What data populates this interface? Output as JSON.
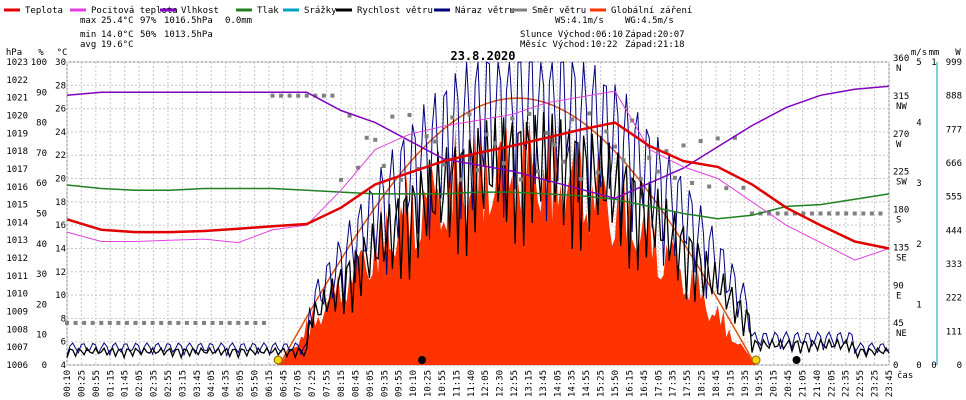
{
  "colors": {
    "temperature": "#e00000",
    "feels_like": "#e040e0",
    "humidity": "#8000c0",
    "pressure": "#208020",
    "precipitation": "#00a0c0",
    "wind_speed": "#000000",
    "wind_gust": "#000080",
    "wind_direction": "#808080",
    "radiation": "#ff3300",
    "radiation_curve": "#e05010",
    "grid": "#c8c8c8",
    "sun_marker": "#ffd400"
  },
  "legend": [
    {
      "key": "temperature",
      "label": "Teplota"
    },
    {
      "key": "feels_like",
      "label": "Pocitová teplota"
    },
    {
      "key": "humidity",
      "label": "Vlhkost"
    },
    {
      "key": "pressure",
      "label": "Tlak"
    },
    {
      "key": "precipitation",
      "label": "Srážky"
    },
    {
      "key": "wind_speed",
      "label": "Rychlost větru"
    },
    {
      "key": "wind_gust",
      "label": "Náraz větru"
    },
    {
      "key": "wind_direction",
      "label": "Směr větru"
    },
    {
      "key": "radiation",
      "label": "Globální záření"
    }
  ],
  "stats": {
    "max": {
      "label": "max",
      "temp": "25.4°C",
      "hum": "97%",
      "press": "1016.5hPa",
      "rain": "0.0mm"
    },
    "min": {
      "label": "min",
      "temp": "14.0°C",
      "hum": "50%",
      "press": "1013.5hPa"
    },
    "avg": {
      "label": "avg",
      "temp": "19.6°C"
    }
  },
  "info": {
    "ws": "WS:4.1m/s",
    "wg": "WG:4.5m/s",
    "sun": "Slunce Východ:06:10",
    "sun_set": "Západ:20:07",
    "moon": "Měsíc Východ:10:22",
    "moon_set": "Západ:21:18"
  },
  "chart_data": {
    "type": "line",
    "title": "23.8.2020",
    "xlabel": "čas",
    "axes": {
      "hpa": {
        "label": "hPa",
        "min": 1006,
        "max": 1023,
        "ticks": [
          1006,
          1007,
          1008,
          1009,
          1010,
          1011,
          1012,
          1013,
          1014,
          1015,
          1016,
          1017,
          1018,
          1019,
          1020,
          1021,
          1022,
          1023
        ]
      },
      "percent": {
        "label": "%",
        "min": 0,
        "max": 100,
        "ticks": [
          0,
          10,
          20,
          30,
          40,
          50,
          60,
          70,
          80,
          90,
          100
        ]
      },
      "celsius": {
        "label": "°C",
        "min": 4,
        "max": 30,
        "ticks": [
          4,
          6,
          8,
          10,
          12,
          14,
          16,
          18,
          20,
          22,
          24,
          26,
          28,
          30
        ]
      },
      "wind": {
        "label": "m/s",
        "min": 0,
        "max": 5,
        "ticks": [
          0,
          1,
          2,
          3,
          4,
          5
        ]
      },
      "direction": {
        "label": "°",
        "ticks": [
          {
            "v": 0,
            "t": "0"
          },
          {
            "v": 45,
            "t": "45 NE"
          },
          {
            "v": 90,
            "t": "90 E"
          },
          {
            "v": 135,
            "t": "135 SE"
          },
          {
            "v": 180,
            "t": "180 S"
          },
          {
            "v": 225,
            "t": "225 SW"
          },
          {
            "v": 270,
            "t": "270 W"
          },
          {
            "v": 315,
            "t": "315 NW"
          },
          {
            "v": 360,
            "t": "360 N"
          }
        ]
      },
      "rain": {
        "label": "mm",
        "min": 0,
        "max": 1,
        "ticks": [
          0,
          1
        ]
      },
      "radiation": {
        "label": "W",
        "min": 0,
        "max": 999,
        "ticks": [
          0,
          111,
          222,
          333,
          444,
          555,
          666,
          777,
          888,
          999
        ]
      }
    },
    "x_ticks": [
      "00:10",
      "00:25",
      "00:55",
      "01:15",
      "01:45",
      "02:05",
      "02:35",
      "02:55",
      "03:15",
      "03:45",
      "04:05",
      "04:35",
      "05:05",
      "05:50",
      "06:15",
      "06:45",
      "07:05",
      "07:25",
      "07:55",
      "08:15",
      "08:45",
      "09:05",
      "09:35",
      "09:55",
      "10:10",
      "10:25",
      "10:55",
      "11:15",
      "11:40",
      "12:05",
      "12:30",
      "12:55",
      "13:15",
      "13:45",
      "14:05",
      "14:35",
      "14:55",
      "15:25",
      "15:50",
      "16:15",
      "16:45",
      "17:05",
      "17:35",
      "17:55",
      "18:25",
      "18:45",
      "19:15",
      "19:35",
      "19:55",
      "20:15",
      "20:45",
      "21:05",
      "21:40",
      "22:05",
      "22:35",
      "22:55",
      "23:25",
      "23:45"
    ],
    "series": [
      {
        "name": "Teplota",
        "unit": "°C",
        "hours": [
          0,
          1,
          2,
          3,
          4,
          5,
          6,
          7,
          8,
          9,
          10,
          11,
          12,
          13,
          14,
          15,
          16,
          17,
          18,
          19,
          20,
          21,
          22,
          23,
          24
        ],
        "values": [
          16.5,
          15.6,
          15.4,
          15.4,
          15.5,
          15.7,
          15.9,
          16.1,
          17.5,
          19.5,
          20.5,
          21.5,
          22.2,
          22.8,
          23.5,
          24.2,
          24.8,
          22.8,
          21.5,
          21.0,
          19.5,
          17.5,
          16.0,
          14.6,
          14.0
        ]
      },
      {
        "name": "Pocitová teplota",
        "unit": "°C",
        "hours": [
          0,
          1,
          2,
          3,
          4,
          5,
          6,
          7,
          8,
          9,
          10,
          11,
          12,
          13,
          14,
          15,
          16,
          17,
          18,
          19,
          20,
          21,
          22,
          23,
          24
        ],
        "values": [
          15.4,
          14.6,
          14.6,
          14.7,
          14.8,
          14.5,
          15.6,
          16.0,
          19.0,
          22.5,
          23.8,
          24.5,
          25.0,
          25.5,
          26.5,
          27.0,
          27.5,
          22.5,
          21.0,
          20.0,
          18.0,
          16.0,
          14.5,
          13.0,
          14.0
        ]
      },
      {
        "name": "Vlhkost",
        "unit": "%",
        "hours": [
          0,
          1,
          2,
          3,
          4,
          5,
          6,
          7,
          8,
          9,
          10,
          11,
          12,
          13,
          14,
          15,
          16,
          17,
          18,
          19,
          20,
          21,
          22,
          23,
          24
        ],
        "values": [
          89,
          90,
          90,
          90,
          90,
          90,
          90,
          90,
          84,
          80,
          74,
          68,
          66,
          64,
          61,
          58,
          55,
          60,
          65,
          72,
          79,
          85,
          89,
          91,
          92
        ]
      },
      {
        "name": "Tlak",
        "unit": "hPa",
        "hours": [
          0,
          1,
          2,
          3,
          4,
          5,
          6,
          7,
          8,
          9,
          10,
          11,
          12,
          13,
          14,
          15,
          16,
          17,
          18,
          19,
          20,
          21,
          22,
          23,
          24
        ],
        "values": [
          1016.1,
          1015.9,
          1015.8,
          1015.8,
          1015.9,
          1015.9,
          1015.9,
          1015.8,
          1015.7,
          1015.6,
          1015.6,
          1015.6,
          1015.7,
          1015.7,
          1015.6,
          1015.5,
          1015.3,
          1014.9,
          1014.5,
          1014.2,
          1014.4,
          1014.9,
          1015.0,
          1015.3,
          1015.6
        ]
      }
    ]
  }
}
